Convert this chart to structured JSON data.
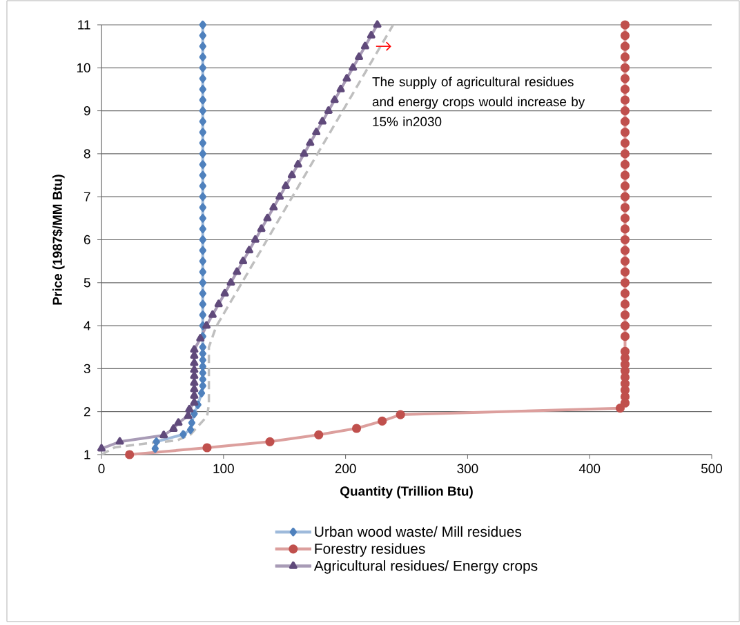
{
  "chart_data": {
    "type": "line",
    "xlabel": "Quantity (Trillion Btu)",
    "ylabel": "Price (1987$/MM Btu)",
    "xlim": [
      0,
      500
    ],
    "xticks": [
      0,
      100,
      200,
      300,
      400,
      500
    ],
    "ylim": [
      1,
      11
    ],
    "yticks": [
      1,
      2,
      3,
      4,
      5,
      6,
      7,
      8,
      9,
      10,
      11
    ],
    "grid": "y",
    "legend": "bottom",
    "annotations": [
      {
        "text": "The supply of agricultural residues and energy crops would increase by 15% in2030",
        "x": 225,
        "y": 10.5
      }
    ],
    "series": [
      {
        "name": "Urban wood waste/ Mill residues",
        "color": "#4f81bd",
        "marker": "diamond",
        "x": [
          44,
          45,
          67,
          73,
          74,
          76,
          79,
          82,
          83,
          83,
          83,
          83,
          83,
          83,
          83,
          83,
          83,
          83,
          83,
          83,
          83,
          83,
          83,
          83,
          83,
          83,
          83,
          83,
          83,
          83,
          83,
          83,
          83,
          83,
          83,
          83,
          83,
          83,
          83,
          83,
          83,
          83,
          83,
          83,
          83
        ],
        "values": [
          1.14,
          1.3,
          1.47,
          1.58,
          1.74,
          1.95,
          2.16,
          2.43,
          2.6,
          2.75,
          2.9,
          3.05,
          3.2,
          3.35,
          3.5,
          3.75,
          4,
          4.25,
          4.5,
          4.75,
          5,
          5.25,
          5.5,
          5.75,
          6,
          6.25,
          6.5,
          6.75,
          7,
          7.25,
          7.5,
          7.75,
          8,
          8.25,
          8.5,
          8.75,
          9,
          9.25,
          9.5,
          9.75,
          10,
          10.25,
          10.5,
          10.75,
          11
        ]
      },
      {
        "name": "Forestry residues",
        "color": "#c0504d",
        "marker": "circle",
        "x": [
          23,
          86.5,
          138,
          178,
          209,
          230,
          245,
          425,
          429,
          429,
          429,
          429,
          429,
          429,
          429,
          429,
          429,
          429,
          429,
          429,
          429,
          429,
          429,
          429,
          429,
          429,
          429,
          429,
          429,
          429,
          429,
          429,
          429,
          429,
          429,
          429,
          429,
          429,
          429,
          429,
          429,
          429,
          429,
          429,
          429,
          429,
          429
        ],
        "values": [
          1.0,
          1.16,
          1.3,
          1.46,
          1.61,
          1.78,
          1.93,
          2.08,
          2.2,
          2.35,
          2.5,
          2.65,
          2.8,
          2.95,
          3.1,
          3.25,
          3.4,
          3.75,
          4,
          4.25,
          4.5,
          4.75,
          5,
          5.25,
          5.5,
          5.75,
          6,
          6.25,
          6.5,
          6.75,
          7,
          7.25,
          7.5,
          7.75,
          8,
          8.25,
          8.5,
          8.75,
          9,
          9.25,
          9.5,
          9.75,
          10,
          10.25,
          10.5,
          10.75,
          11
        ]
      },
      {
        "name": "Agricultural residues/ Energy crops",
        "color": "#604a7b",
        "marker": "triangle",
        "x": [
          0,
          15,
          51,
          59,
          63,
          71,
          72,
          76,
          76,
          76,
          76,
          76,
          76,
          76,
          76,
          76,
          81,
          86,
          91,
          96,
          101,
          106,
          111,
          116,
          121,
          126,
          131,
          136,
          141,
          146,
          151,
          156,
          161,
          166,
          171,
          176,
          181,
          186,
          191,
          196,
          201,
          206,
          211,
          216,
          221,
          226
        ],
        "values": [
          1.14,
          1.3,
          1.45,
          1.6,
          1.74,
          1.9,
          2.05,
          2.21,
          2.37,
          2.52,
          2.67,
          2.83,
          2.97,
          3.13,
          3.3,
          3.44,
          3.7,
          4,
          4.25,
          4.5,
          4.75,
          5,
          5.25,
          5.5,
          5.75,
          6,
          6.25,
          6.5,
          6.75,
          7,
          7.25,
          7.5,
          7.75,
          8,
          8.25,
          8.5,
          8.75,
          9,
          9.25,
          9.5,
          9.75,
          10,
          10.25,
          10.5,
          10.75,
          11
        ]
      },
      {
        "color": "#bfbfbf",
        "marker": "none",
        "line_style": "dashed",
        "x": [
          0,
          11,
          37,
          62,
          73,
          86.5,
          88,
          88,
          94,
          239
        ],
        "values": [
          1.0,
          1.17,
          1.26,
          1.33,
          1.47,
          1.89,
          2.16,
          3.5,
          3.98,
          11
        ]
      }
    ]
  }
}
